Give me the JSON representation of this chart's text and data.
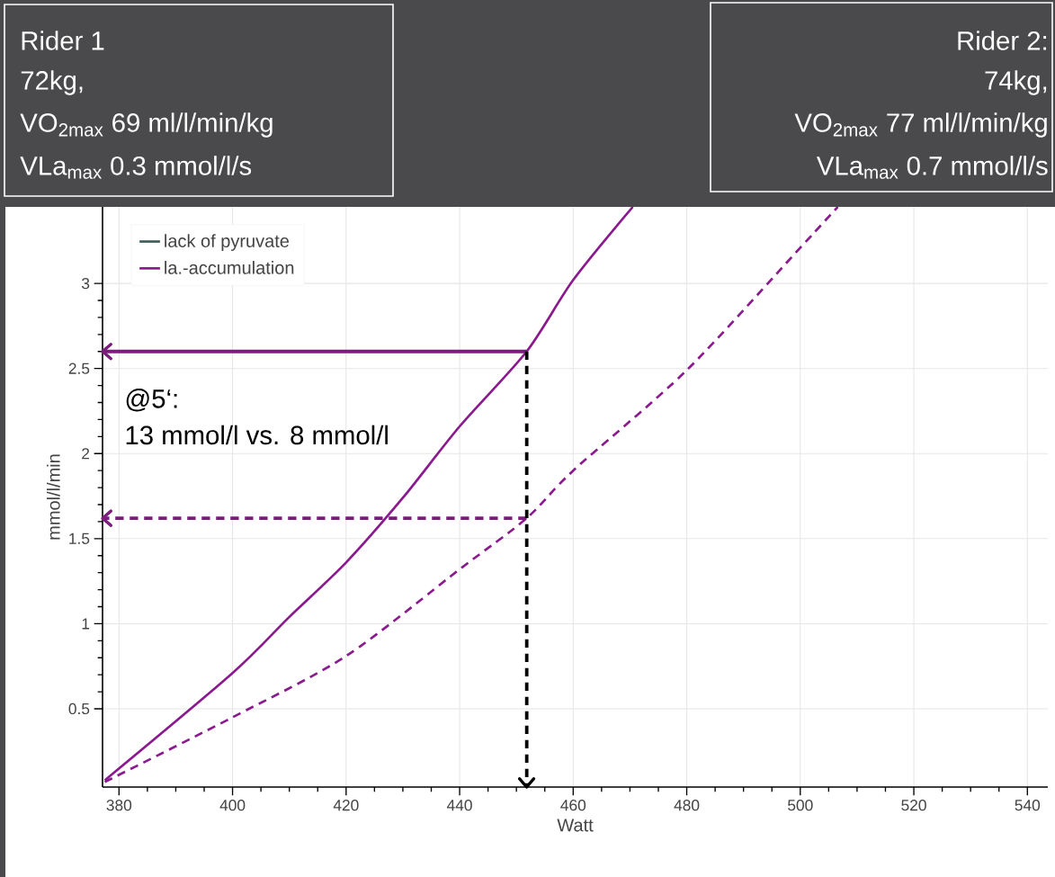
{
  "chart_data": {
    "type": "line",
    "xlabel": "Watt",
    "ylabel": "mmol/l/min",
    "xlim": [
      377.1,
      543.6
    ],
    "ylim": [
      0.04,
      3.45
    ],
    "xticks": [
      380,
      400,
      420,
      440,
      460,
      480,
      500,
      520,
      540
    ],
    "yticks": [
      0.5,
      1,
      1.5,
      2,
      2.5,
      3
    ],
    "grid": true,
    "legend": "top left",
    "series": [
      {
        "name": "lack of pyruvate",
        "color": "#3d5c5c"
      },
      {
        "name": "la.-accumulation",
        "color": "#8b1a8f",
        "line_style": "solid",
        "x": [
          377.5,
          400,
          410,
          420,
          430,
          440,
          451.8,
          460,
          470.5
        ],
        "values": [
          0.08,
          0.71,
          1.04,
          1.36,
          1.74,
          2.16,
          2.6,
          3.02,
          3.45
        ]
      },
      {
        "color": "#8b1a8f",
        "line_style": "dashed",
        "x": [
          377.5,
          400,
          420,
          440,
          451.8,
          460,
          480,
          500,
          506.6
        ],
        "values": [
          0.07,
          0.45,
          0.81,
          1.32,
          1.62,
          1.9,
          2.49,
          3.21,
          3.45
        ]
      }
    ],
    "ref_lines": [
      {
        "axis": "y",
        "value": 2.6,
        "color": "#7b1b7b",
        "line_style": "solid"
      },
      {
        "axis": "y",
        "value": 1.62,
        "color": "#7b1b7b",
        "line_style": "dashed"
      },
      {
        "axis": "x",
        "value": 451.8,
        "color": "#000000",
        "line_style": "dashed"
      }
    ],
    "annotations": [
      "Rider 1",
      "72kg,",
      "VO$_{2max}$ 69 ml/l/min/kg",
      "VLa$_{max}$ 0.3 mmol/l/s",
      "Rider 2:",
      "74kg,",
      "VO$_{2max}$ 77 ml/l/min/kg",
      "VLa$_{max}$ 0.7 mmol/l/s",
      "@5‘:",
      "13 mmol/l vs. 8 mmol/l"
    ]
  }
}
